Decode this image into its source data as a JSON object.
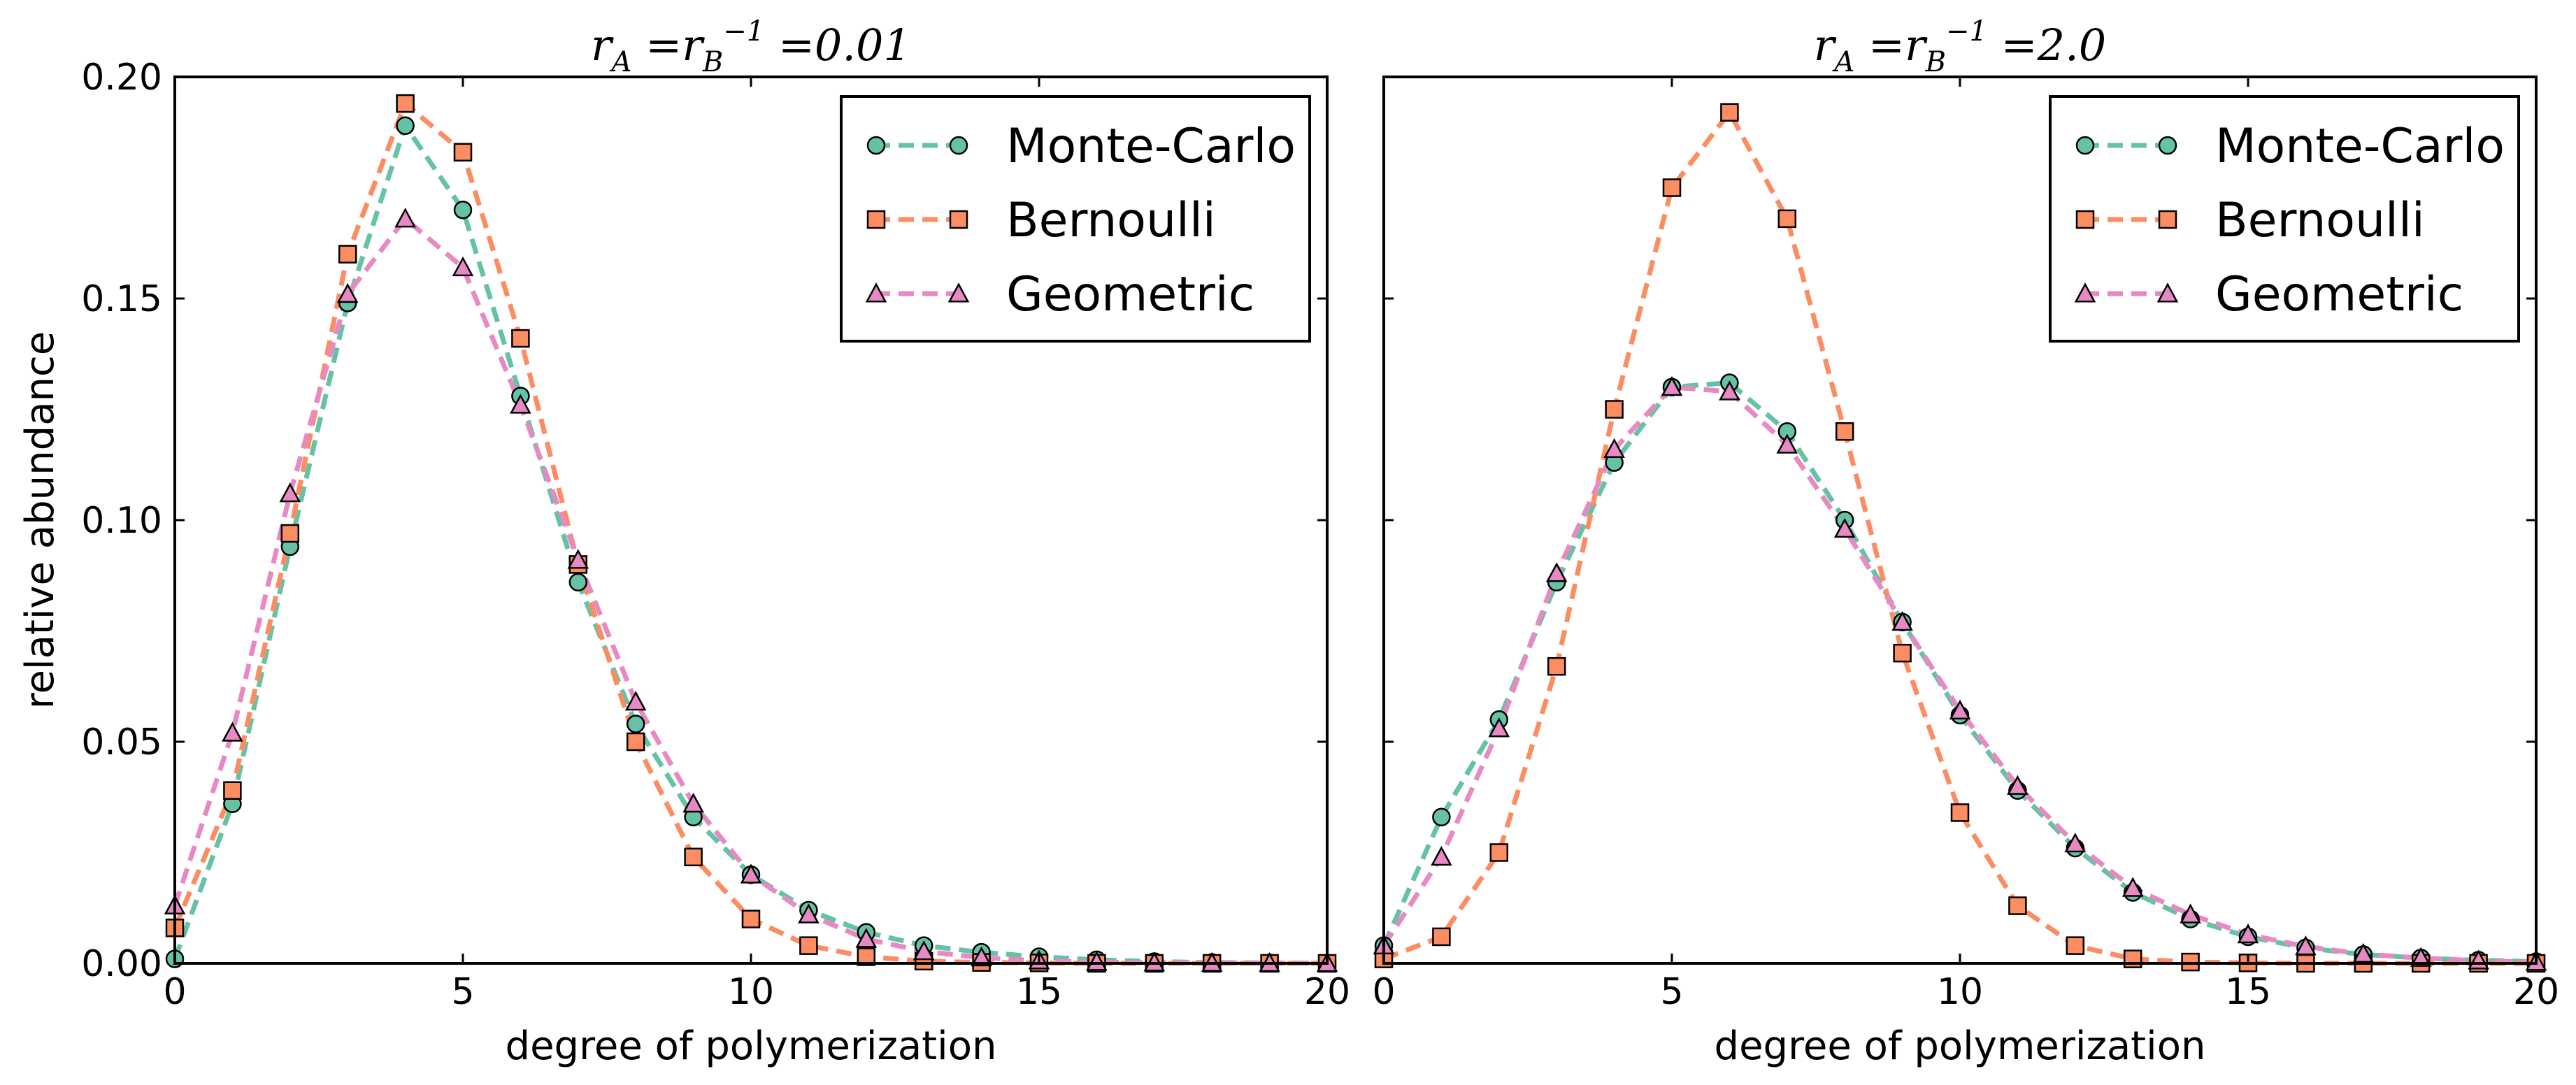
{
  "colors": {
    "monte_carlo": "#66c2a5",
    "bernoulli": "#fc8d62",
    "geometric": "#e78ac3"
  },
  "chart_data": [
    {
      "type": "line",
      "title_parts": {
        "r": "r",
        "a_sub": "A",
        "eq1": " =",
        "b_sub": "B",
        "sup": "−1",
        "eq2": " =0.01"
      },
      "xlabel": "degree of polymerization",
      "ylabel": "relative abundance",
      "xlim": [
        0,
        20
      ],
      "ylim": [
        0,
        0.2
      ],
      "xticks": [
        "0",
        "5",
        "10",
        "15",
        "20"
      ],
      "yticks": [
        "0.00",
        "0.05",
        "0.10",
        "0.15",
        "0.20"
      ],
      "show_yticklabels": true,
      "legend_position": "top-right",
      "x": [
        0,
        1,
        2,
        3,
        4,
        5,
        6,
        7,
        8,
        9,
        10,
        11,
        12,
        13,
        14,
        15,
        16,
        17,
        18,
        19,
        20
      ],
      "series": [
        {
          "name": "Monte-Carlo",
          "marker": "circle",
          "color": "#66c2a5",
          "values": [
            0.001,
            0.036,
            0.094,
            0.149,
            0.189,
            0.17,
            0.128,
            0.086,
            0.054,
            0.033,
            0.02,
            0.012,
            0.007,
            0.004,
            0.0025,
            0.0015,
            0.0008,
            0.0004,
            0.0002,
            0.0001,
            5e-05
          ]
        },
        {
          "name": "Bernoulli",
          "marker": "square",
          "color": "#fc8d62",
          "values": [
            0.008,
            0.039,
            0.097,
            0.16,
            0.194,
            0.183,
            0.141,
            0.09,
            0.05,
            0.024,
            0.01,
            0.004,
            0.0015,
            0.0005,
            0.0002,
            0.0001,
            0.0,
            0.0,
            0.0,
            0.0,
            0.0
          ]
        },
        {
          "name": "Geometric",
          "marker": "triangle",
          "color": "#e78ac3",
          "values": [
            0.013,
            0.052,
            0.106,
            0.151,
            0.168,
            0.157,
            0.126,
            0.091,
            0.059,
            0.036,
            0.02,
            0.011,
            0.0055,
            0.0027,
            0.0013,
            0.0006,
            0.0003,
            0.00015,
            7e-05,
            3e-05,
            1e-05
          ]
        }
      ]
    },
    {
      "type": "line",
      "title_parts": {
        "r": "r",
        "a_sub": "A",
        "eq1": " =",
        "b_sub": "B",
        "sup": "−1",
        "eq2": " =2.0"
      },
      "xlabel": "degree of polymerization",
      "ylabel": "",
      "xlim": [
        0,
        20
      ],
      "ylim": [
        0,
        0.2
      ],
      "xticks": [
        "0",
        "5",
        "10",
        "15",
        "20"
      ],
      "yticks": [],
      "show_yticklabels": false,
      "legend_position": "top-right",
      "x": [
        0,
        1,
        2,
        3,
        4,
        5,
        6,
        7,
        8,
        9,
        10,
        11,
        12,
        13,
        14,
        15,
        16,
        17,
        18,
        19,
        20
      ],
      "series": [
        {
          "name": "Monte-Carlo",
          "marker": "circle",
          "color": "#66c2a5",
          "values": [
            0.004,
            0.033,
            0.055,
            0.086,
            0.113,
            0.13,
            0.131,
            0.12,
            0.1,
            0.077,
            0.056,
            0.039,
            0.026,
            0.016,
            0.01,
            0.006,
            0.0035,
            0.002,
            0.0012,
            0.0007,
            0.0004
          ]
        },
        {
          "name": "Bernoulli",
          "marker": "square",
          "color": "#fc8d62",
          "values": [
            0.001,
            0.006,
            0.025,
            0.067,
            0.125,
            0.175,
            0.192,
            0.168,
            0.12,
            0.07,
            0.034,
            0.013,
            0.004,
            0.001,
            0.0003,
            0.0001,
            0.0,
            0.0,
            0.0,
            0.0,
            0.0
          ]
        },
        {
          "name": "Geometric",
          "marker": "triangle",
          "color": "#e78ac3",
          "values": [
            0.004,
            0.024,
            0.053,
            0.088,
            0.116,
            0.13,
            0.129,
            0.117,
            0.098,
            0.077,
            0.057,
            0.04,
            0.027,
            0.017,
            0.011,
            0.0065,
            0.0038,
            0.0021,
            0.0012,
            0.0006,
            0.0003
          ]
        }
      ]
    }
  ]
}
